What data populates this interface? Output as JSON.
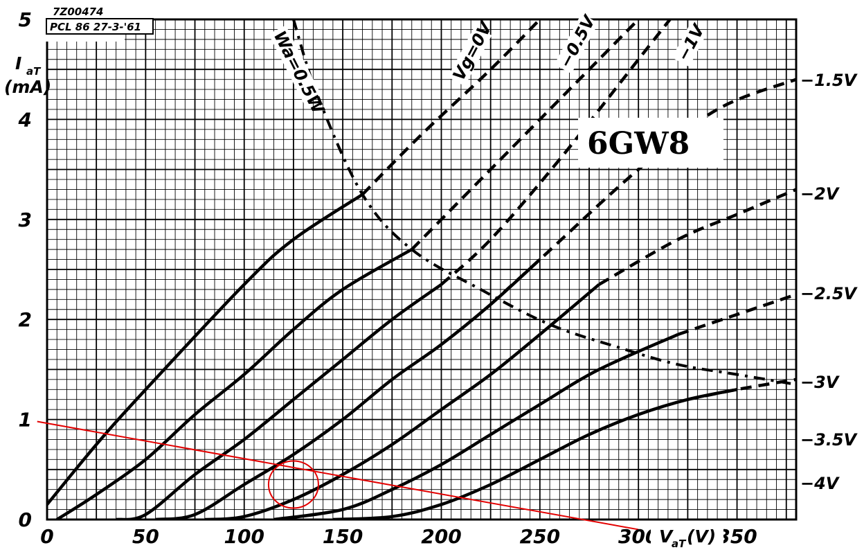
{
  "header": {
    "code": "7Z00474",
    "stamp": "PCL 86  27-3-'61"
  },
  "title": "6GW8",
  "chart_data": {
    "type": "line",
    "xlabel": "Vₐᵀ(V)",
    "xlabel_main": "V",
    "xlabel_sub": "aT",
    "xlabel_unit": "(V)",
    "ylabel_main": "I",
    "ylabel_sub": "aT",
    "ylabel_unit": "(mA)",
    "xlim": [
      0,
      380
    ],
    "ylim": [
      0,
      5
    ],
    "x_ticks": [
      "0",
      "50",
      "100",
      "150",
      "200",
      "250",
      "300",
      "350"
    ],
    "y_ticks": [
      "0",
      "1",
      "2",
      "3",
      "4",
      "5"
    ],
    "grid": true,
    "series": [
      {
        "name": "Vg=0V",
        "points": [
          [
            0,
            0.15
          ],
          [
            25,
            0.75
          ],
          [
            50,
            1.3
          ],
          [
            100,
            2.35
          ],
          [
            125,
            2.8
          ],
          [
            160,
            3.25
          ],
          [
            190,
            3.85
          ],
          [
            225,
            4.5
          ],
          [
            250,
            5.0
          ]
        ]
      },
      {
        "name": "−0.5V",
        "points": [
          [
            5,
            0
          ],
          [
            25,
            0.25
          ],
          [
            50,
            0.6
          ],
          [
            75,
            1.05
          ],
          [
            100,
            1.45
          ],
          [
            125,
            1.9
          ],
          [
            150,
            2.3
          ],
          [
            185,
            2.7
          ],
          [
            225,
            3.5
          ],
          [
            280,
            4.6
          ],
          [
            300,
            5.0
          ]
        ]
      },
      {
        "name": "−1V",
        "points": [
          [
            35,
            0
          ],
          [
            50,
            0.05
          ],
          [
            75,
            0.45
          ],
          [
            100,
            0.8
          ],
          [
            125,
            1.2
          ],
          [
            150,
            1.6
          ],
          [
            175,
            2.0
          ],
          [
            200,
            2.35
          ],
          [
            225,
            2.8
          ],
          [
            260,
            3.6
          ],
          [
            300,
            4.6
          ],
          [
            316,
            5.0
          ]
        ]
      },
      {
        "name": "−1.5V",
        "points": [
          [
            55,
            0
          ],
          [
            75,
            0.05
          ],
          [
            100,
            0.35
          ],
          [
            125,
            0.65
          ],
          [
            150,
            1.0
          ],
          [
            175,
            1.4
          ],
          [
            200,
            1.75
          ],
          [
            225,
            2.15
          ],
          [
            250,
            2.6
          ],
          [
            300,
            3.5
          ],
          [
            340,
            4.1
          ],
          [
            380,
            4.4
          ]
        ]
      },
      {
        "name": "−2V",
        "points": [
          [
            80,
            0
          ],
          [
            100,
            0.03
          ],
          [
            125,
            0.2
          ],
          [
            150,
            0.45
          ],
          [
            175,
            0.75
          ],
          [
            200,
            1.1
          ],
          [
            225,
            1.45
          ],
          [
            250,
            1.85
          ],
          [
            280,
            2.35
          ],
          [
            320,
            2.8
          ],
          [
            350,
            3.05
          ],
          [
            380,
            3.3
          ]
        ]
      },
      {
        "name": "−2.5V",
        "points": [
          [
            115,
            0
          ],
          [
            150,
            0.1
          ],
          [
            175,
            0.3
          ],
          [
            200,
            0.55
          ],
          [
            225,
            0.85
          ],
          [
            250,
            1.15
          ],
          [
            280,
            1.5
          ],
          [
            320,
            1.85
          ],
          [
            350,
            2.05
          ],
          [
            380,
            2.25
          ]
        ]
      },
      {
        "name": "−3V",
        "points": [
          [
            145,
            0
          ],
          [
            175,
            0.03
          ],
          [
            200,
            0.15
          ],
          [
            225,
            0.35
          ],
          [
            250,
            0.6
          ],
          [
            275,
            0.85
          ],
          [
            300,
            1.05
          ],
          [
            325,
            1.2
          ],
          [
            350,
            1.3
          ],
          [
            380,
            1.4
          ]
        ]
      },
      {
        "name": "−3.5V",
        "points": [
          [
            185,
            0
          ],
          [
            225,
            0.05
          ],
          [
            250,
            0.15
          ],
          [
            275,
            0.28
          ],
          [
            300,
            0.4
          ],
          [
            325,
            0.5
          ],
          [
            350,
            0.6
          ],
          [
            380,
            0.75
          ]
        ]
      },
      {
        "name": "−4V",
        "points": [
          [
            235,
            0
          ],
          [
            260,
            0.02
          ],
          [
            290,
            0.05
          ],
          [
            320,
            0.12
          ],
          [
            350,
            0.2
          ],
          [
            380,
            0.32
          ]
        ]
      },
      {
        "name": "Wa=0.5W",
        "points": [
          [
            125,
            5.0
          ],
          [
            137,
            4.25
          ],
          [
            160,
            3.25
          ],
          [
            185,
            2.7
          ],
          [
            220,
            2.3
          ],
          [
            255,
            1.95
          ],
          [
            290,
            1.72
          ],
          [
            320,
            1.55
          ],
          [
            350,
            1.45
          ],
          [
            380,
            1.35
          ]
        ]
      },
      {
        "name": "load-line",
        "points": [
          [
            -5,
            0.98
          ],
          [
            300,
            -0.1
          ]
        ]
      }
    ],
    "marker": {
      "x": 125,
      "y": 0.35
    }
  }
}
